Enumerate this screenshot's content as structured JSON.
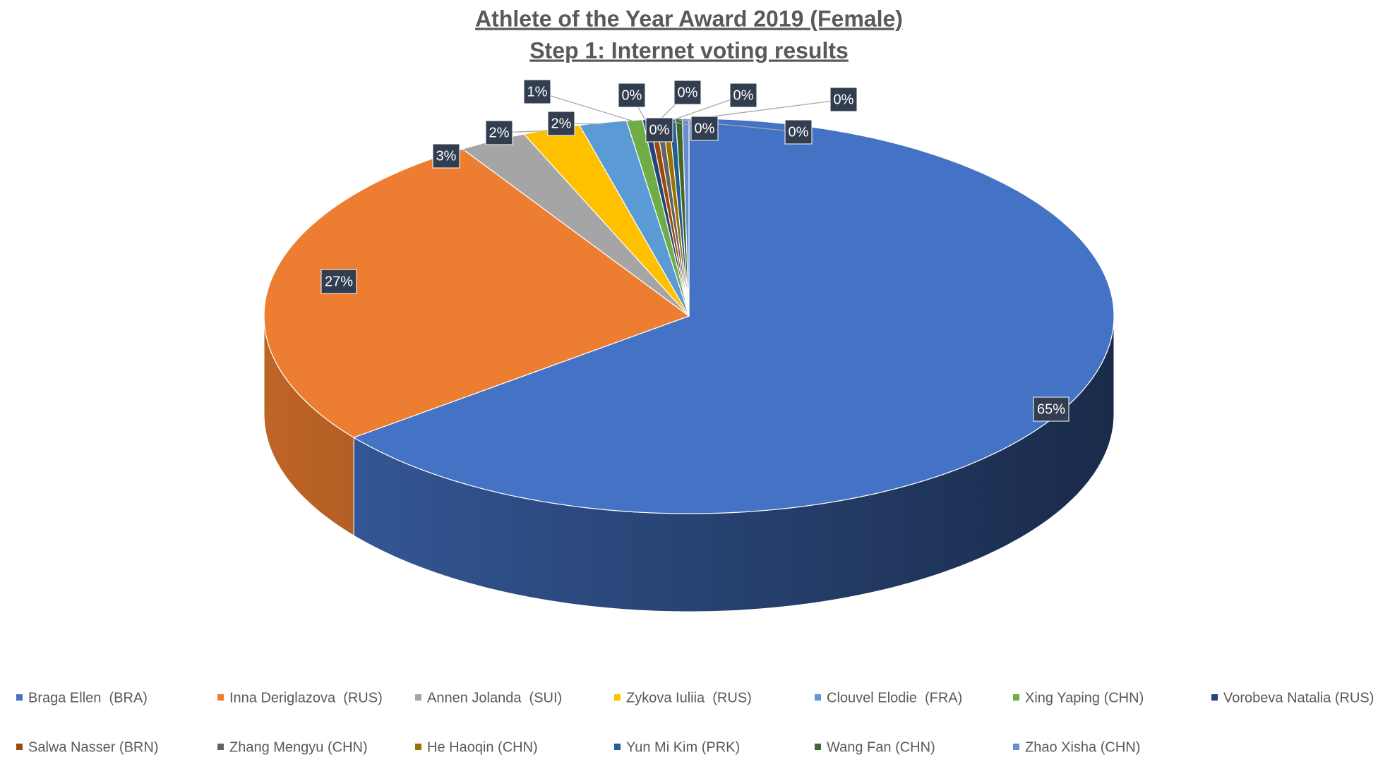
{
  "chart_data": {
    "type": "pie3d",
    "title": "Athlete of the Year Award 2019 (Female)",
    "subtitle": "Step 1: Internet voting results",
    "categories": [
      "Braga Ellen  (BRA)",
      "Inna Deriglazova  (RUS)",
      "Annen Jolanda  (SUI)",
      "Zykova Iuliia  (RUS)",
      "Clouvel Elodie  (FRA)",
      "Xing Yaping (CHN)",
      "Vorobeva Natalia (RUS)",
      "Salwa Nasser (BRN)",
      "Zhang Mengyu (CHN)",
      "He Haoqin (CHN)",
      "Yun Mi Kim (PRK)",
      "Wang Fan (CHN)",
      "Zhao Xisha (CHN)"
    ],
    "values": [
      64.5,
      26.6,
      2.6,
      2.2,
      1.8,
      0.6,
      0.25,
      0.25,
      0.25,
      0.25,
      0.25,
      0.25,
      0.25
    ],
    "value_labels": [
      "65%",
      "27%",
      "3%",
      "2%",
      "2%",
      "1%",
      "0%",
      "0%",
      "0%",
      "0%",
      "0%",
      "0%",
      "0%"
    ],
    "colors": [
      "#4472c4",
      "#ed7d31",
      "#a5a5a5",
      "#ffc000",
      "#5b9bd5",
      "#70ad47",
      "#264478",
      "#9e480e",
      "#636363",
      "#997300",
      "#255e91",
      "#43682b",
      "#698ed0"
    ],
    "legend": "bottom"
  }
}
